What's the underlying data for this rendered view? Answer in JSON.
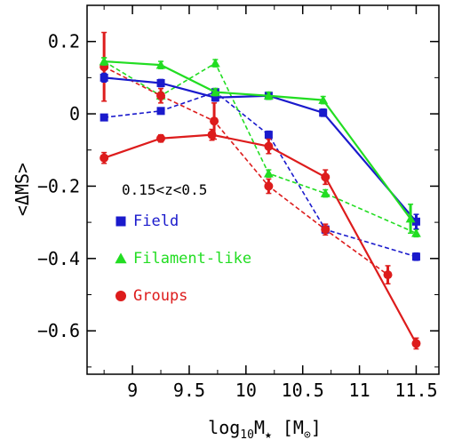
{
  "chart_data": {
    "type": "line",
    "xlabel": "log10M* [M⊙]",
    "xlabel_parts": {
      "prefix": "log",
      "sub1": "10",
      "mid": "M",
      "sub2": "★",
      "unit_open": " [M",
      "unit_sub": "⊙",
      "unit_close": "]"
    },
    "ylabel": "<ΔMS>",
    "xlim": [
      8.6,
      11.7
    ],
    "ylim": [
      -0.72,
      0.3
    ],
    "xticks": [
      9,
      9.5,
      10,
      10.5,
      11,
      11.5
    ],
    "xtick_labels": [
      "9",
      "9.5",
      "10",
      "10.5",
      "11",
      "11.5"
    ],
    "yticks": [
      0.2,
      0,
      -0.2,
      -0.4,
      -0.6
    ],
    "ytick_labels": [
      "0.2",
      "0",
      "−0.2",
      "−0.4",
      "−0.6"
    ],
    "annotation": "0.15<z<0.5",
    "legend_placement": "left-center",
    "series": [
      {
        "name": "Field",
        "color": "#1a1acc",
        "marker": "square",
        "style": "solid",
        "x": [
          8.75,
          9.25,
          9.73,
          10.2,
          10.68,
          11.5
        ],
        "y": [
          0.1,
          0.085,
          0.045,
          0.05,
          0.003,
          -0.298
        ],
        "yerr": [
          0.012,
          0.01,
          0.01,
          0.01,
          0.01,
          0.02
        ]
      },
      {
        "name": "Field",
        "color": "#1a1acc",
        "marker": "square",
        "style": "dashed",
        "x": [
          8.75,
          9.25,
          9.73,
          10.2,
          10.7,
          11.5
        ],
        "y": [
          -0.01,
          0.008,
          0.06,
          -0.058,
          -0.32,
          -0.395
        ],
        "yerr": [
          0.008,
          0.008,
          0.01,
          0.01,
          0.01,
          0.01
        ]
      },
      {
        "name": "Filament-like",
        "color": "#22dd22",
        "marker": "triangle",
        "style": "solid",
        "x": [
          8.75,
          9.25,
          9.73,
          10.2,
          10.68,
          11.45
        ],
        "y": [
          0.145,
          0.135,
          0.06,
          0.05,
          0.038,
          -0.29
        ],
        "yerr": [
          0.01,
          0.01,
          0.01,
          0.01,
          0.01,
          0.04
        ]
      },
      {
        "name": "Filament-like",
        "color": "#22dd22",
        "marker": "triangle",
        "style": "dashed",
        "x": [
          8.75,
          9.25,
          9.73,
          10.2,
          10.7,
          11.5
        ],
        "y": [
          0.145,
          0.05,
          0.14,
          -0.165,
          -0.22,
          -0.33
        ],
        "yerr": [
          0.01,
          0.01,
          0.01,
          0.01,
          0.01,
          0.01
        ]
      },
      {
        "name": "Groups",
        "color": "#dd1c1c",
        "marker": "circle",
        "style": "solid",
        "x": [
          8.75,
          9.25,
          9.7,
          10.2,
          10.7,
          11.5
        ],
        "y": [
          -0.122,
          -0.068,
          -0.058,
          -0.09,
          -0.175,
          -0.635
        ],
        "yerr": [
          0.015,
          0.01,
          0.015,
          0.02,
          0.02,
          0.015
        ]
      },
      {
        "name": "Groups",
        "color": "#dd1c1c",
        "marker": "circle",
        "style": "dashed",
        "x": [
          8.75,
          9.25,
          9.72,
          10.2,
          10.7,
          11.25
        ],
        "y": [
          0.13,
          0.05,
          -0.02,
          -0.2,
          -0.32,
          -0.445
        ],
        "yerr": [
          0.095,
          0.02,
          0.05,
          0.02,
          0.015,
          0.025
        ]
      }
    ],
    "legend": [
      {
        "label": "Field",
        "color": "#1a1acc",
        "marker": "square"
      },
      {
        "label": "Filament-like",
        "color": "#22dd22",
        "marker": "triangle"
      },
      {
        "label": "Groups",
        "color": "#dd1c1c",
        "marker": "circle"
      }
    ]
  }
}
